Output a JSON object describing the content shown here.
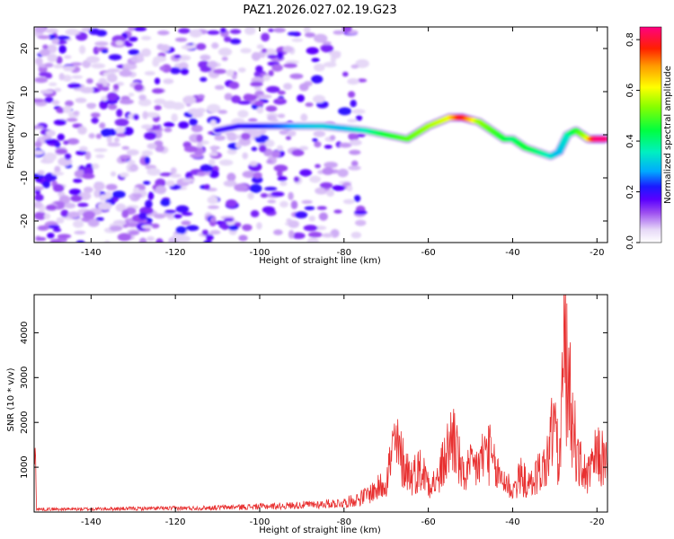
{
  "title": "PAZ1.2026.027.02.19.G23",
  "colors": {
    "series": "#e83030",
    "axis": "#000000"
  },
  "chart_data": [
    {
      "type": "heatmap",
      "xlabel": "Height of straight line (km)",
      "ylabel": "Frequency (Hz)",
      "xlim": [
        -153.5,
        -17.5
      ],
      "ylim": [
        -25,
        25
      ],
      "x_ticks": [
        -140,
        -120,
        -100,
        -80,
        -60,
        -40,
        -20
      ],
      "y_ticks": [
        -20,
        -10,
        0,
        10,
        20
      ],
      "x_tick_labels": [
        "-140",
        "-120",
        "-100",
        "-80",
        "-60",
        "-40",
        "-20"
      ],
      "y_tick_labels": [
        "-20",
        "-10",
        "0",
        "10",
        "20"
      ],
      "colorbar": {
        "label": "Normalized spectral amplitude",
        "range": [
          0,
          0.85
        ],
        "ticks": [
          0,
          0.2,
          0.4,
          0.6,
          0.8
        ],
        "tick_labels": [
          "0.0",
          "0.2",
          "0.4",
          "0.6",
          "0.8"
        ]
      },
      "ridge": {
        "x": [
          -110,
          -105,
          -100,
          -95,
          -90,
          -85,
          -80,
          -75,
          -70,
          -65,
          -60,
          -55,
          -52,
          -48,
          -45,
          -42,
          -40,
          -37,
          -34,
          -31,
          -29,
          -27,
          -25,
          -22,
          -20,
          -18
        ],
        "y": [
          1,
          2,
          2,
          2,
          2,
          2,
          1.5,
          1,
          0,
          -1,
          2,
          4,
          4,
          3,
          1,
          -1,
          -1,
          -3,
          -4,
          -5,
          -4,
          0,
          1,
          -1,
          -1,
          -1
        ],
        "amplitude": [
          0.18,
          0.2,
          0.22,
          0.25,
          0.3,
          0.32,
          0.3,
          0.35,
          0.45,
          0.5,
          0.55,
          0.6,
          0.8,
          0.55,
          0.5,
          0.45,
          0.4,
          0.45,
          0.4,
          0.35,
          0.3,
          0.35,
          0.45,
          0.6,
          0.85,
          0.85
        ]
      }
    },
    {
      "type": "line",
      "xlabel": "Height of straight line (km)",
      "ylabel": "SNR (10 * v/v)",
      "xlim": [
        -153.5,
        -17.5
      ],
      "ylim": [
        0,
        4850
      ],
      "x_ticks": [
        -140,
        -120,
        -100,
        -80,
        -60,
        -40,
        -20
      ],
      "y_ticks": [
        1000,
        2000,
        3000,
        4000
      ],
      "x_tick_labels": [
        "-140",
        "-120",
        "-100",
        "-80",
        "-60",
        "-40",
        "-20"
      ],
      "y_tick_labels": [
        "1000",
        "2000",
        "3000",
        "4000"
      ],
      "series": [
        {
          "name": "SNR",
          "x": [
            -153,
            -145,
            -135,
            -125,
            -115,
            -105,
            -95,
            -85,
            -80,
            -77,
            -75,
            -72,
            -70,
            -68,
            -66,
            -64,
            -62,
            -60,
            -58,
            -56,
            -54,
            -52,
            -50,
            -48,
            -46,
            -44,
            -42,
            -40,
            -38,
            -36,
            -34,
            -32,
            -30,
            -29,
            -28,
            -27.5,
            -27,
            -26,
            -25,
            -24,
            -23,
            -22,
            -21,
            -20,
            -19,
            -18
          ],
          "y": [
            80,
            80,
            90,
            100,
            110,
            140,
            170,
            220,
            260,
            350,
            450,
            650,
            900,
            1900,
            1400,
            1000,
            1200,
            900,
            800,
            1500,
            2200,
            1000,
            1200,
            1300,
            1800,
            1100,
            900,
            600,
            1000,
            700,
            1100,
            1300,
            2700,
            1000,
            4000,
            4700,
            3400,
            2900,
            1800,
            1300,
            1100,
            1000,
            1300,
            1600,
            1500,
            1400
          ]
        }
      ]
    }
  ]
}
